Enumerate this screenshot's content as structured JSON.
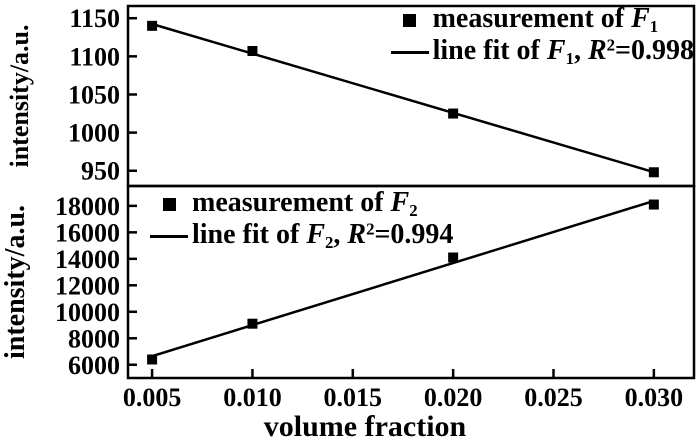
{
  "chart_data": {
    "type": "line",
    "title": "",
    "xlabel": "volume fraction",
    "x_ticks": [
      "0.005",
      "0.010",
      "0.015",
      "0.020",
      "0.025",
      "0.030"
    ],
    "x_range": [
      0.0038,
      0.032
    ],
    "grid": false,
    "panels": [
      {
        "name": "F1",
        "ylabel": "intensity/a.u.",
        "y_ticks": [
          950,
          1000,
          1050,
          1100,
          1150
        ],
        "y_range": [
          930,
          1166
        ],
        "points": [
          [
            0.005,
            1140
          ],
          [
            0.01,
            1107
          ],
          [
            0.02,
            1025
          ],
          [
            0.03,
            948
          ]
        ],
        "r_squared": 0.998,
        "legend_position": "top-right",
        "legend": {
          "measurement_prefix": "measurement of ",
          "series_symbol": "F",
          "series_subscript": "1",
          "fit_prefix": "line fit of ",
          "separator": ", ",
          "r_symbol": "R",
          "r_superscript": "2",
          "r_value": "=0.998"
        }
      },
      {
        "name": "F2",
        "ylabel": "intensity/a.u.",
        "y_ticks": [
          6000,
          8000,
          10000,
          12000,
          14000,
          16000,
          18000
        ],
        "y_range": [
          5000,
          19500
        ],
        "points": [
          [
            0.005,
            6400
          ],
          [
            0.01,
            9100
          ],
          [
            0.02,
            14100
          ],
          [
            0.03,
            18100
          ]
        ],
        "r_squared": 0.994,
        "legend_position": "top-left",
        "legend": {
          "measurement_prefix": "measurement of ",
          "series_symbol": "F",
          "series_subscript": "2",
          "fit_prefix": "line fit of ",
          "separator": ", ",
          "r_symbol": "R",
          "r_superscript": "2",
          "r_value": "=0.994"
        }
      }
    ],
    "colors": {
      "line": "#000000",
      "marker": "#000000",
      "background": "#ffffff"
    }
  }
}
